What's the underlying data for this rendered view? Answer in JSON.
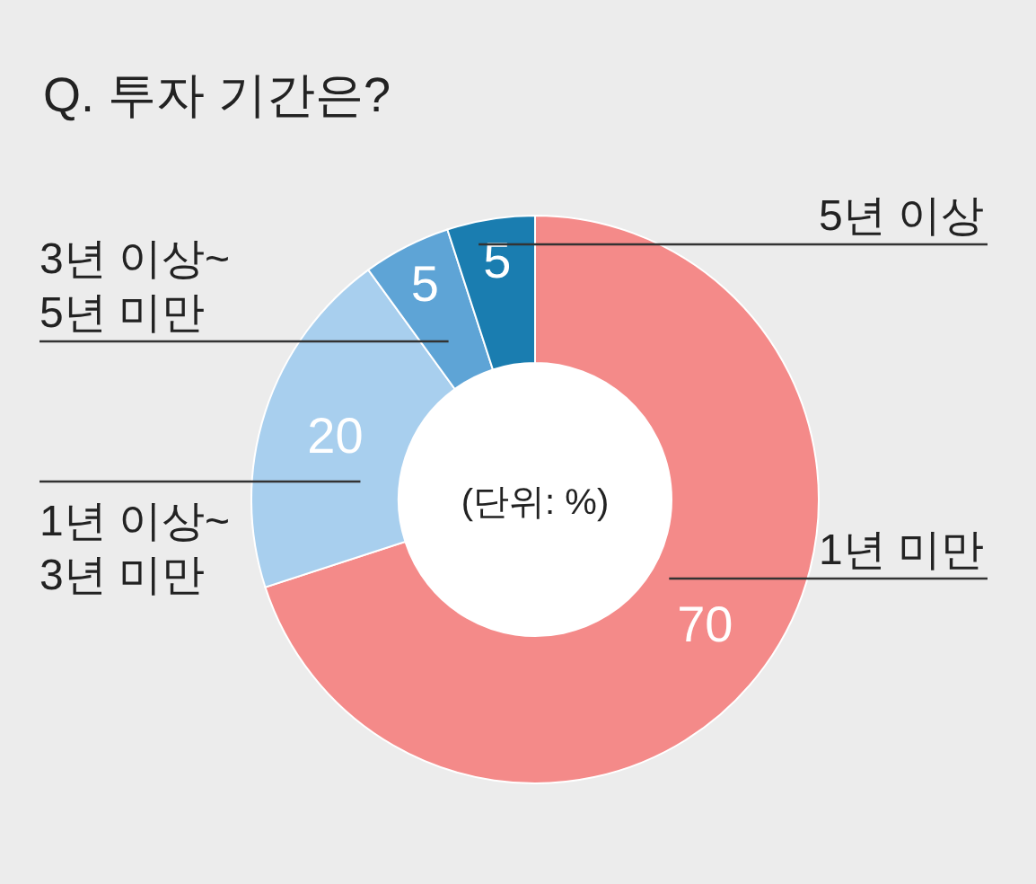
{
  "chart_data": {
    "type": "donut",
    "title": "Q. 투자 기간은?",
    "categories": [
      "1년 미만",
      "1년 이상~\n3년 미만",
      "3년 이상~\n5년 미만",
      "5년 이상"
    ],
    "values": [
      70,
      20,
      5,
      5
    ],
    "colors": [
      "#f48a89",
      "#a8cfee",
      "#5ea4d6",
      "#1a7db0"
    ],
    "data_labels": true,
    "annotations": [
      "(단위: %)"
    ]
  }
}
